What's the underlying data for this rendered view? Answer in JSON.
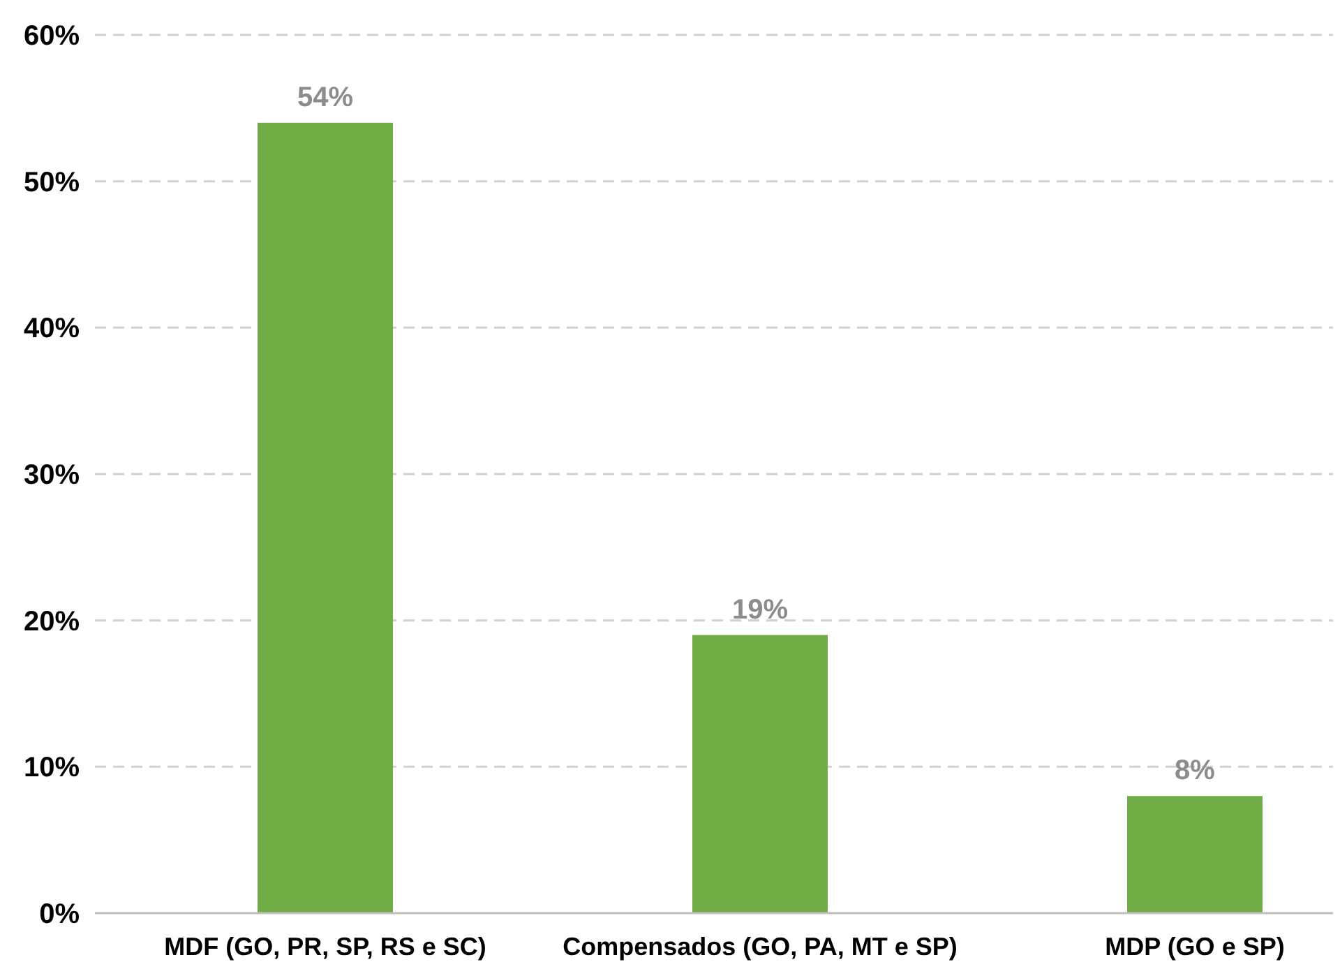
{
  "chart_data": {
    "type": "bar",
    "categories": [
      "MDF (GO, PR, SP, RS e SC)",
      "Compensados (GO, PA, MT e SP)",
      "MDP (GO e SP)"
    ],
    "values": [
      54,
      19,
      8
    ],
    "color": "#70ad47",
    "ylim": [
      0,
      60
    ],
    "yticks": [
      {
        "value": 0,
        "label": "0%"
      },
      {
        "value": 10,
        "label": "10%"
      },
      {
        "value": 20,
        "label": "20%"
      },
      {
        "value": 30,
        "label": "30%"
      },
      {
        "value": 40,
        "label": "40%"
      },
      {
        "value": 50,
        "label": "50%"
      },
      {
        "value": 60,
        "label": "60%"
      }
    ],
    "value_labels": [
      "54%",
      "19%",
      "8%"
    ],
    "grid": "y"
  }
}
